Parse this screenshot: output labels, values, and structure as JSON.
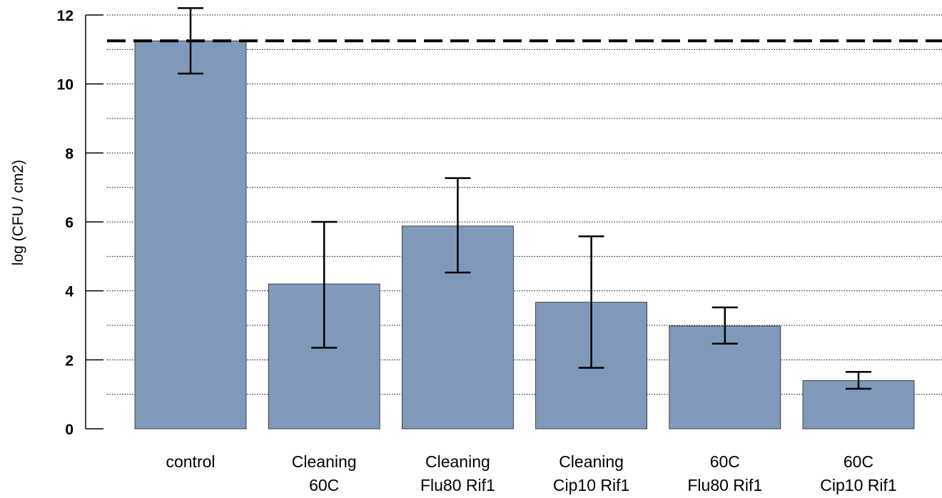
{
  "chart_data": {
    "type": "bar",
    "categories": [
      [
        "control"
      ],
      [
        "Cleaning",
        "60C"
      ],
      [
        "Cleaning",
        "Flu80 Rif1"
      ],
      [
        "Cleaning",
        "Cip10 Rif1"
      ],
      [
        "60C",
        "Flu80 Rif1"
      ],
      [
        "60C",
        "Cip10 Rif1"
      ]
    ],
    "values": [
      11.25,
      4.2,
      5.88,
      3.67,
      2.98,
      1.4
    ],
    "error_low": [
      10.3,
      2.35,
      4.53,
      1.77,
      2.47,
      1.16
    ],
    "error_high": [
      12.2,
      6.0,
      7.27,
      5.58,
      3.52,
      1.65
    ],
    "reference_line": 11.25,
    "ylabel": "log (CFU / cm2)",
    "ylim": [
      0,
      12
    ],
    "yticks": [
      "0",
      "2",
      "4",
      "6",
      "8",
      "10",
      "12"
    ],
    "grid_step": 1,
    "grid": "horizontal-dotted",
    "bar_color": "#8099bb",
    "error_bar_color": "#000000"
  }
}
